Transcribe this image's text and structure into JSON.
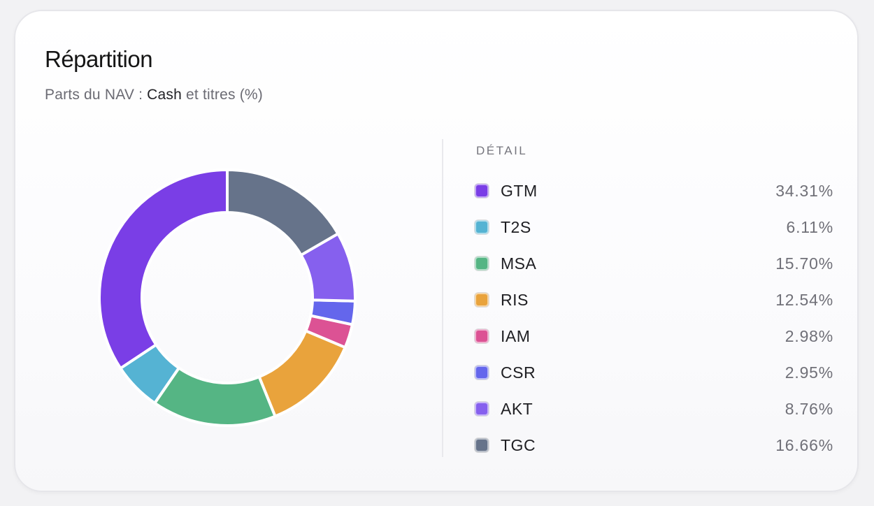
{
  "card": {
    "title": "Répartition",
    "subtitle_prefix": "Parts du NAV : ",
    "subtitle_highlight": "Cash",
    "subtitle_suffix": " et titres (%)"
  },
  "legend_header": "DÉTAIL",
  "chart_data": {
    "type": "pie",
    "style": "donut",
    "categories": [
      "GTM",
      "T2S",
      "MSA",
      "RIS",
      "IAM",
      "CSR",
      "AKT",
      "TGC"
    ],
    "values": [
      34.31,
      6.11,
      15.7,
      12.54,
      2.98,
      2.95,
      8.76,
      16.66
    ],
    "value_labels": [
      "34.31%",
      "6.11%",
      "15.70%",
      "12.54%",
      "2.98%",
      "2.95%",
      "8.76%",
      "16.66%"
    ],
    "colors": [
      "#7a3ee6",
      "#55b3d3",
      "#55b584",
      "#e9a33c",
      "#dc5294",
      "#6466ec",
      "#8660ee",
      "#66738a"
    ],
    "start_angle_deg": 90,
    "direction": "counterclockwise",
    "legend_position": "right"
  }
}
